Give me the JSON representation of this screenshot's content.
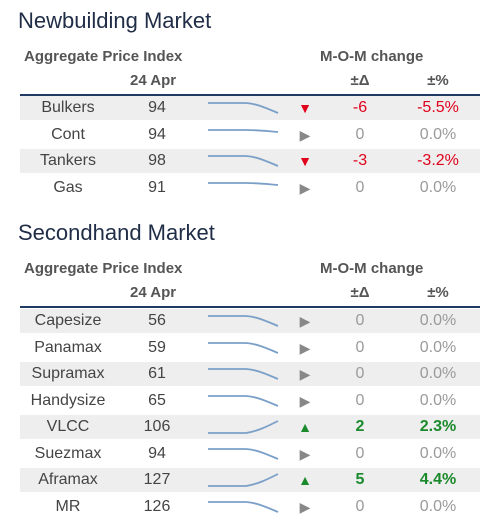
{
  "colors": {
    "title": "#1f2d46",
    "rule": "#1f3b63",
    "negative": "#e0001b",
    "positive": "#1a8a2c",
    "neutral": "#9a9a9a",
    "sparkline": "#7ba0c8",
    "shade": "#eeeeee"
  },
  "newbuilding": {
    "title": "Newbuilding Market",
    "header_left": "Aggregate Price Index",
    "header_date": "24 Apr",
    "header_change": "M-O-M change",
    "header_delta": "±Δ",
    "header_pct": "±%",
    "rows": [
      {
        "name": "Bulkers",
        "index": "94",
        "trend": "down",
        "arrow": "down-triangle-icon",
        "delta": "-6",
        "pct": "-5.5%",
        "sign": "neg"
      },
      {
        "name": "Cont",
        "index": "94",
        "trend": "flat",
        "arrow": "right-triangle-icon",
        "delta": "0",
        "pct": "0.0%",
        "sign": "flat"
      },
      {
        "name": "Tankers",
        "index": "98",
        "trend": "down",
        "arrow": "down-triangle-icon",
        "delta": "-3",
        "pct": "-3.2%",
        "sign": "neg"
      },
      {
        "name": "Gas",
        "index": "91",
        "trend": "flat",
        "arrow": "right-triangle-icon",
        "delta": "0",
        "pct": "0.0%",
        "sign": "flat"
      }
    ]
  },
  "secondhand": {
    "title": "Secondhand Market",
    "header_left": "Aggregate Price Index",
    "header_date": "24 Apr",
    "header_change": "M-O-M change",
    "header_delta": "±Δ",
    "header_pct": "±%",
    "rows": [
      {
        "name": "Capesize",
        "index": "56",
        "trend": "down",
        "arrow": "right-triangle-icon",
        "delta": "0",
        "pct": "0.0%",
        "sign": "flat"
      },
      {
        "name": "Panamax",
        "index": "59",
        "trend": "down",
        "arrow": "right-triangle-icon",
        "delta": "0",
        "pct": "0.0%",
        "sign": "flat"
      },
      {
        "name": "Supramax",
        "index": "61",
        "trend": "down",
        "arrow": "right-triangle-icon",
        "delta": "0",
        "pct": "0.0%",
        "sign": "flat"
      },
      {
        "name": "Handysize",
        "index": "65",
        "trend": "down",
        "arrow": "right-triangle-icon",
        "delta": "0",
        "pct": "0.0%",
        "sign": "flat"
      },
      {
        "name": "VLCC",
        "index": "106",
        "trend": "up",
        "arrow": "up-triangle-icon",
        "delta": "2",
        "pct": "2.3%",
        "sign": "pos"
      },
      {
        "name": "Suezmax",
        "index": "94",
        "trend": "down",
        "arrow": "right-triangle-icon",
        "delta": "0",
        "pct": "0.0%",
        "sign": "flat"
      },
      {
        "name": "Aframax",
        "index": "127",
        "trend": "up",
        "arrow": "up-triangle-icon",
        "delta": "5",
        "pct": "4.4%",
        "sign": "pos"
      },
      {
        "name": "MR",
        "index": "126",
        "trend": "down",
        "arrow": "right-triangle-icon",
        "delta": "0",
        "pct": "0.0%",
        "sign": "flat"
      }
    ]
  }
}
